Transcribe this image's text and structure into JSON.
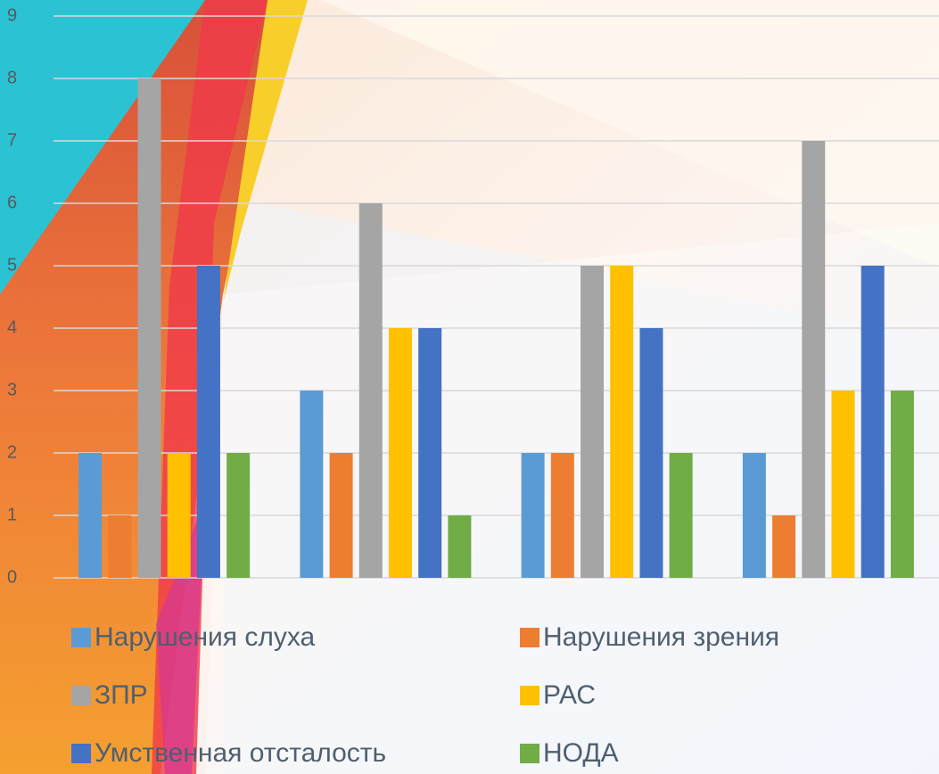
{
  "chart_data": {
    "type": "bar",
    "categories": [
      null,
      null,
      null,
      null
    ],
    "series": [
      {
        "name": "Нарушения слуха",
        "color": "#5b9bd5",
        "values": [
          2,
          3,
          2,
          2
        ]
      },
      {
        "name": "Нарушения зрения",
        "color": "#ed7d31",
        "values": [
          1,
          2,
          2,
          1
        ]
      },
      {
        "name": "ЗПР",
        "color": "#a5a5a5",
        "values": [
          8,
          6,
          5,
          7
        ]
      },
      {
        "name": "РАС",
        "color": "#ffc000",
        "values": [
          2,
          4,
          5,
          3
        ]
      },
      {
        "name": "Умственная отсталость",
        "color": "#4472c4",
        "values": [
          5,
          4,
          4,
          5
        ]
      },
      {
        "name": "НОДА",
        "color": "#70ad47",
        "values": [
          2,
          1,
          2,
          3
        ]
      }
    ],
    "ylim": [
      0,
      9
    ],
    "yticks": [
      0,
      1,
      2,
      3,
      4,
      5,
      6,
      7,
      8,
      9
    ],
    "grid": true,
    "legend": "bottom"
  }
}
